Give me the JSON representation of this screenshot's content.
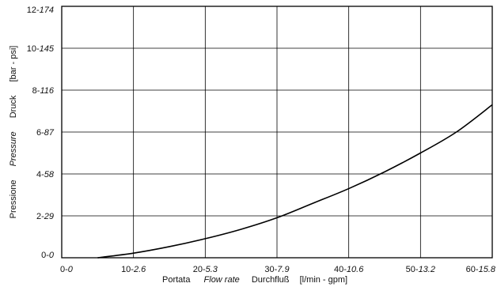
{
  "chart_data": {
    "type": "line",
    "xlabel_parts": [
      "Portata",
      "Flow rate",
      "Durchfluß",
      "[l/min - gpm]"
    ],
    "ylabel_parts": [
      "Pressione",
      "Pressure",
      "Druck",
      "[bar - psi]"
    ],
    "xlim": [
      0,
      60
    ],
    "ylim": [
      0,
      12
    ],
    "x_ticks": [
      {
        "value": 0,
        "lpm": "0",
        "gpm": "0"
      },
      {
        "value": 10,
        "lpm": "10",
        "gpm": "2.6"
      },
      {
        "value": 20,
        "lpm": "20",
        "gpm": "5.3"
      },
      {
        "value": 30,
        "lpm": "30",
        "gpm": "7.9"
      },
      {
        "value": 40,
        "lpm": "40",
        "gpm": "10.6"
      },
      {
        "value": 50,
        "lpm": "50",
        "gpm": "13.2"
      },
      {
        "value": 60,
        "lpm": "60",
        "gpm": "15.8"
      }
    ],
    "y_ticks": [
      {
        "value": 0,
        "bar": "0",
        "psi": "0"
      },
      {
        "value": 2,
        "bar": "2",
        "psi": "29"
      },
      {
        "value": 4,
        "bar": "4",
        "psi": "58"
      },
      {
        "value": 6,
        "bar": "6",
        "psi": "87"
      },
      {
        "value": 8,
        "bar": "8",
        "psi": "116"
      },
      {
        "value": 10,
        "bar": "10",
        "psi": "145"
      },
      {
        "value": 12,
        "bar": "12",
        "psi": "174"
      }
    ],
    "grid": true,
    "series": [
      {
        "x": [
          5,
          10,
          15,
          20,
          25,
          30,
          35,
          40,
          45,
          50,
          55,
          60
        ],
        "y": [
          0,
          0.22,
          0.53,
          0.91,
          1.36,
          1.91,
          2.6,
          3.3,
          4.1,
          5.0,
          6.0,
          7.3
        ]
      }
    ]
  }
}
